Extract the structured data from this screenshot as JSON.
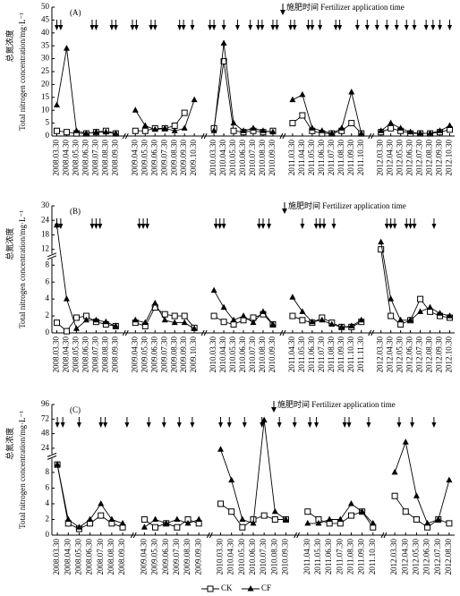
{
  "chart_data": [
    {
      "type": "line",
      "panel_label": "(A)",
      "annotation": "施肥时间 Fertilizer application time",
      "ylabel_cn": "总氮浓度",
      "ylabel": "Total nitrogen concentration/mg·L⁻¹",
      "categories": [
        "2008.03.30",
        "2008.04.30",
        "2008.05.30",
        "2008.06.30",
        "2008.07.30",
        "2008.08.30",
        "2008.09.30",
        null,
        "2009.04.30",
        "2009.05.30",
        "2009.06.30",
        "2009.07.30",
        "2009.08.30",
        "2009.09.30",
        "2009.10.30",
        null,
        "2010.03.30",
        "2010.04.30",
        "2010.05.30",
        "2010.06.30",
        "2010.07.30",
        "2010.08.30",
        "2010.09.30",
        null,
        "2011.03.30",
        "2011.04.30",
        "2011.05.30",
        "2011.06.30",
        "2011.07.30",
        "2011.08.30",
        "2011.09.30",
        "2011.10.30",
        null,
        "2012.03.30",
        "2012.04.30",
        "2012.05.30",
        "2012.06.30",
        "2012.07.30",
        "2012.08.30",
        "2012.09.30",
        "2012.10.30"
      ],
      "ylim": [
        0,
        50
      ],
      "yticks": [
        0,
        5,
        10,
        15,
        20,
        25,
        30,
        35,
        40,
        45,
        50
      ],
      "arrows": [
        0,
        0.4,
        3.6,
        4,
        5.6,
        6,
        7.7,
        8.1,
        9.6,
        10,
        12.5,
        12.9,
        13.8,
        15.6,
        16,
        17,
        18.4,
        19.7,
        20.5,
        20.9,
        22,
        22.4,
        23.8,
        24.2,
        25.6,
        26,
        26.8,
        28.4,
        28.8,
        30.6,
        31.6,
        32.6,
        33.6,
        34.6,
        35.6,
        36.4,
        37.6,
        38.3,
        39,
        40
      ],
      "series": [
        {
          "color": "#000",
          "marker": "square",
          "values": [
            2,
            1.5,
            1,
            1,
            1.5,
            2,
            1,
            null,
            2,
            2,
            3,
            3,
            4,
            9,
            null,
            null,
            3,
            29,
            2,
            1.5,
            2,
            1.5,
            2,
            null,
            5,
            8,
            2,
            1,
            1,
            2,
            5,
            1,
            null,
            1.5,
            3,
            2,
            1,
            1,
            1,
            1.5,
            2.5
          ]
        },
        {
          "color": "#000",
          "marker": "triangle",
          "values": [
            12,
            34,
            2,
            1,
            1.5,
            1.5,
            1,
            null,
            10,
            4,
            2.5,
            3,
            2,
            3,
            14,
            null,
            2,
            36,
            5,
            2,
            3,
            2,
            1.5,
            null,
            14,
            16,
            3,
            2,
            1,
            3,
            17,
            1,
            null,
            2,
            5,
            3,
            1.5,
            1,
            1,
            2,
            4
          ]
        }
      ]
    },
    {
      "type": "line",
      "panel_label": "(B)",
      "annotation": "施肥时间 Fertilizer application time",
      "ylabel_cn": "总氮浓度",
      "ylabel": "Total nitrogen concentration/mg·L⁻¹",
      "categories": [
        "2008.03.30",
        "2008.04.30",
        "2008.05.30",
        "2008.06.30",
        "2008.07.30",
        "2008.08.30",
        "2008.09.30",
        null,
        "2009.04.30",
        "2009.05.30",
        "2009.06.30",
        "2009.07.30",
        "2009.08.30",
        "2009.09.30",
        "2009.10.30",
        null,
        "2010.03.30",
        "2010.04.30",
        "2010.05.30",
        "2010.06.30",
        "2010.07.30",
        "2010.08.30",
        "2010.09.30",
        null,
        "2011.04.30",
        "2011.05.30",
        "2011.06.30",
        "2011.07.30",
        "2011.08.30",
        "2011.09.30",
        "2011.10.30",
        "2011.11.30",
        null,
        "2012.03.30",
        "2012.04.30",
        "2012.05.30",
        "2012.06.30",
        "2012.07.30",
        "2012.08.30",
        "2012.09.30",
        "2012.10.30"
      ],
      "ylim": [
        0,
        30
      ],
      "ybreak": 9,
      "yticks": [
        0,
        2,
        4,
        6,
        8,
        12,
        18,
        24,
        30
      ],
      "arrows": [
        0,
        0.4,
        3.6,
        4,
        4.4,
        8.4,
        8.8,
        9.2,
        16.2,
        16.6,
        17,
        20.6,
        21,
        21.6,
        25,
        26.4,
        26.8,
        27.2,
        28.2,
        33.6,
        34,
        34.4,
        35.6,
        36,
        36.4,
        38.4
      ],
      "series": [
        {
          "color": "#000",
          "marker": "square",
          "values": [
            1.2,
            0.2,
            1.8,
            2,
            1.3,
            1,
            0.8,
            null,
            1.2,
            0.8,
            3,
            2.2,
            2,
            2,
            0.6,
            null,
            2,
            1.3,
            1,
            1.5,
            1.8,
            2.2,
            1,
            null,
            2,
            1.5,
            1.2,
            1.8,
            1.2,
            0.7,
            0.7,
            1.3,
            null,
            12,
            2,
            1,
            1.5,
            4,
            2.5,
            2,
            1.8
          ]
        },
        {
          "color": "#000",
          "marker": "triangle",
          "values": [
            22,
            4,
            0.5,
            1.5,
            1.5,
            1.3,
            0.8,
            null,
            1.5,
            1.2,
            3.5,
            1.5,
            1.2,
            1.2,
            0.5,
            null,
            5,
            3,
            1.5,
            2,
            1.2,
            2.5,
            1,
            null,
            4.2,
            2.5,
            1.3,
            1.5,
            1,
            0.7,
            0.8,
            1.5,
            null,
            15,
            4,
            1.5,
            1.5,
            2.5,
            3,
            2.3,
            2
          ]
        }
      ]
    },
    {
      "type": "line",
      "panel_label": "(C)",
      "annotation": "施肥时间 Fertilizer application time",
      "ylabel_cn": "总氮浓度",
      "ylabel": "Total nitrogen concentration/mg·L⁻¹",
      "categories": [
        "2008.03.30",
        "2008.04.30",
        "2008.05.30",
        "2008.06.30",
        "2008.07.30",
        "2008.08.30",
        "2008.09.30",
        null,
        "2009.04.30",
        "2009.05.30",
        "2009.06.30",
        "2009.07.30",
        "2009.08.30",
        "2009.09.30",
        null,
        "2010.03.30",
        "2010.04.30",
        "2010.05.30",
        "2010.06.30",
        "2010.07.30",
        "2010.08.30",
        "2010.09.30",
        null,
        "2011.04.30",
        "2011.05.30",
        "2011.06.30",
        "2011.07.30",
        "2011.08.30",
        "2011.09.30",
        "2011.10.30",
        null,
        "2012.03.30",
        "2012.04.30",
        "2012.05.30",
        "2012.06.30",
        "2012.07.30",
        "2012.08.30"
      ],
      "ylim": [
        0,
        96
      ],
      "ybreak": 10,
      "yticks": [
        0,
        2,
        4,
        6,
        8,
        24,
        48,
        72,
        96
      ],
      "arrows": [
        0,
        0.5,
        2,
        4,
        4.4,
        6.4,
        8.4,
        9.8,
        11.2,
        12.4,
        15,
        15.8,
        17.2,
        18.8,
        20.4,
        21.8,
        23.2,
        23.8,
        26.4,
        26.8,
        28.6,
        31.4,
        32.6,
        34.6
      ],
      "series": [
        {
          "name": "CK",
          "color": "#000",
          "marker": "square",
          "values": [
            9,
            1.5,
            0.8,
            1.5,
            2.5,
            1.5,
            1,
            null,
            2,
            1,
            1.5,
            1,
            2,
            1.5,
            null,
            4,
            3,
            1,
            2,
            2.5,
            2,
            2,
            null,
            3,
            2,
            1.5,
            1.5,
            2.5,
            3,
            1,
            null,
            5,
            3,
            2,
            1,
            2,
            1.5
          ]
        },
        {
          "name": "CF",
          "color": "#000",
          "marker": "triangle",
          "values": [
            9,
            2,
            1,
            2,
            4,
            2,
            1.5,
            null,
            1,
            2,
            1.5,
            2,
            1.5,
            2,
            null,
            22,
            7,
            2,
            1.5,
            70,
            3,
            2,
            null,
            1.5,
            1.5,
            2,
            2,
            4,
            3,
            1.5,
            null,
            8,
            34,
            5,
            1.5,
            2,
            7
          ]
        }
      ]
    }
  ]
}
